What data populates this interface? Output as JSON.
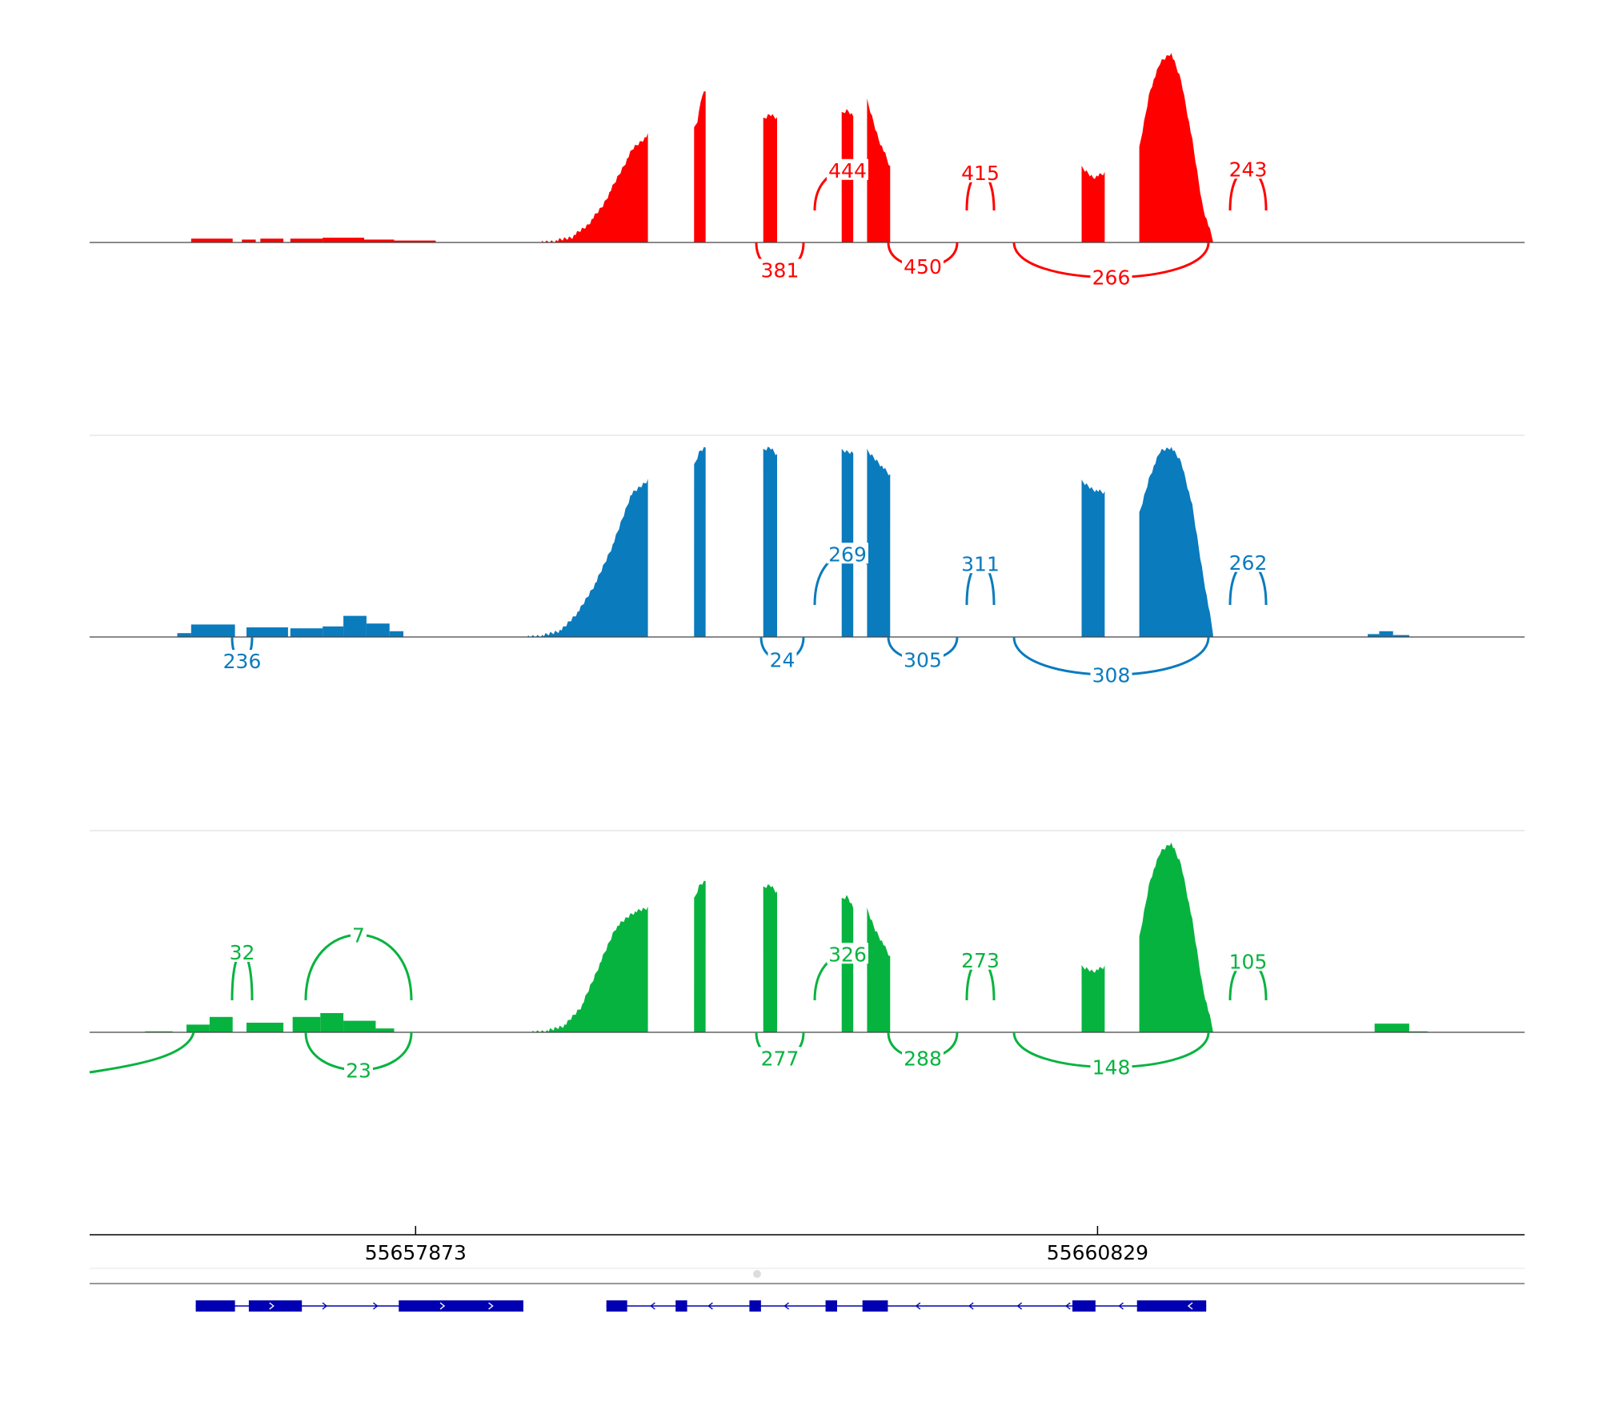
{
  "genome_axis": {
    "ticks": [
      {
        "position": 55657873,
        "label": "55657873"
      },
      {
        "position": 55660829,
        "label": "55660829"
      }
    ],
    "range": [
      55656460,
      55662680
    ]
  },
  "tracks": [
    {
      "id": "red",
      "color": "#ff0000",
      "coverage_blocks": [
        [
          55656900,
          55657080,
          0.02
        ],
        [
          55657120,
          55657180,
          0.015
        ],
        [
          55657200,
          55657300,
          0.02
        ],
        [
          55657330,
          55657470,
          0.02
        ],
        [
          55657470,
          55657650,
          0.025
        ],
        [
          55657650,
          55657780,
          0.015
        ],
        [
          55657780,
          55657960,
          0.01
        ]
      ],
      "exon_peaks": [
        {
          "start": 55658420,
          "end": 55658880,
          "profile": [
            0.01,
            0.02,
            0.04,
            0.1,
            0.2,
            0.35,
            0.5,
            0.57
          ]
        },
        {
          "start": 55659080,
          "end": 55659130,
          "profile": [
            0.6,
            0.65,
            0.78,
            0.8
          ]
        },
        {
          "start": 55659380,
          "end": 55659440,
          "profile": [
            0.65,
            0.68,
            0.66
          ]
        },
        {
          "start": 55659720,
          "end": 55659770,
          "profile": [
            0.68,
            0.7,
            0.67
          ]
        },
        {
          "start": 55659830,
          "end": 55659930,
          "profile": [
            0.75,
            0.65,
            0.55,
            0.48,
            0.4
          ]
        },
        {
          "start": 55660760,
          "end": 55660860,
          "profile": [
            0.4,
            0.35,
            0.37
          ]
        },
        {
          "start": 55661010,
          "end": 55661330,
          "profile": [
            0.5,
            0.8,
            0.95,
            1.0,
            0.85,
            0.55,
            0.2,
            0.02
          ]
        }
      ],
      "junctions": [
        {
          "value": "381",
          "side": "below"
        },
        {
          "value": "444",
          "side": "above"
        },
        {
          "value": "450",
          "side": "below"
        },
        {
          "value": "415",
          "side": "above"
        },
        {
          "value": "266",
          "side": "below"
        },
        {
          "value": "243",
          "side": "above"
        }
      ]
    },
    {
      "id": "blue",
      "color": "#0a7bbd",
      "coverage_blocks": [
        [
          55656840,
          55656900,
          0.02
        ],
        [
          55656900,
          55657090,
          0.065
        ],
        [
          55657140,
          55657320,
          0.05
        ],
        [
          55657330,
          55657470,
          0.045
        ],
        [
          55657470,
          55657560,
          0.055
        ],
        [
          55657560,
          55657660,
          0.11
        ],
        [
          55657660,
          55657760,
          0.07
        ],
        [
          55657760,
          55657820,
          0.03
        ],
        [
          55662000,
          55662050,
          0.015
        ],
        [
          55662050,
          55662110,
          0.03
        ],
        [
          55662110,
          55662180,
          0.01
        ]
      ],
      "exon_peaks": [
        {
          "start": 55658360,
          "end": 55658880,
          "profile": [
            0.01,
            0.02,
            0.05,
            0.15,
            0.3,
            0.5,
            0.75,
            0.83
          ]
        },
        {
          "start": 55659080,
          "end": 55659130,
          "profile": [
            0.9,
            0.98,
            1.0
          ]
        },
        {
          "start": 55659380,
          "end": 55659440,
          "profile": [
            0.98,
            1.0,
            0.96
          ]
        },
        {
          "start": 55659720,
          "end": 55659770,
          "profile": [
            0.98,
            0.97
          ]
        },
        {
          "start": 55659830,
          "end": 55659930,
          "profile": [
            0.98,
            0.92,
            0.85
          ]
        },
        {
          "start": 55660760,
          "end": 55660860,
          "profile": [
            0.82,
            0.78,
            0.76
          ]
        },
        {
          "start": 55661010,
          "end": 55661330,
          "profile": [
            0.65,
            0.85,
            0.98,
            1.0,
            0.92,
            0.7,
            0.35,
            0.03
          ]
        }
      ],
      "junctions": [
        {
          "value": "24",
          "side": "below"
        },
        {
          "value": "269",
          "side": "above"
        },
        {
          "value": "305",
          "side": "below"
        },
        {
          "value": "311",
          "side": "above"
        },
        {
          "value": "308",
          "side": "below"
        },
        {
          "value": "262",
          "side": "above"
        },
        {
          "value": "236",
          "side": "below"
        }
      ]
    },
    {
      "id": "green",
      "color": "#07b33f",
      "coverage_blocks": [
        [
          55656700,
          55656820,
          0.005
        ],
        [
          55656880,
          55656980,
          0.04
        ],
        [
          55656980,
          55657080,
          0.08
        ],
        [
          55657140,
          55657300,
          0.05
        ],
        [
          55657340,
          55657460,
          0.08
        ],
        [
          55657460,
          55657560,
          0.1
        ],
        [
          55657560,
          55657700,
          0.06
        ],
        [
          55657700,
          55657780,
          0.02
        ],
        [
          55662030,
          55662180,
          0.045
        ],
        [
          55662180,
          55662260,
          0.005
        ]
      ],
      "exon_peaks": [
        {
          "start": 55658380,
          "end": 55658880,
          "profile": [
            0.01,
            0.02,
            0.05,
            0.15,
            0.35,
            0.55,
            0.63,
            0.66
          ]
        },
        {
          "start": 55659080,
          "end": 55659130,
          "profile": [
            0.7,
            0.78,
            0.8
          ]
        },
        {
          "start": 55659380,
          "end": 55659440,
          "profile": [
            0.76,
            0.78,
            0.74
          ]
        },
        {
          "start": 55659720,
          "end": 55659770,
          "profile": [
            0.7,
            0.72,
            0.66
          ]
        },
        {
          "start": 55659830,
          "end": 55659930,
          "profile": [
            0.65,
            0.55,
            0.48,
            0.4
          ]
        },
        {
          "start": 55660760,
          "end": 55660860,
          "profile": [
            0.35,
            0.33,
            0.35
          ]
        },
        {
          "start": 55661010,
          "end": 55661330,
          "profile": [
            0.5,
            0.8,
            0.95,
            1.0,
            0.88,
            0.6,
            0.25,
            0.02
          ]
        }
      ],
      "junctions": [
        {
          "value": "32",
          "side": "above"
        },
        {
          "value": "7",
          "side": "above"
        },
        {
          "value": "23",
          "side": "below"
        },
        {
          "value": "277",
          "side": "below"
        },
        {
          "value": "326",
          "side": "above"
        },
        {
          "value": "288",
          "side": "below"
        },
        {
          "value": "273",
          "side": "above"
        },
        {
          "value": "148",
          "side": "below"
        },
        {
          "value": "105",
          "side": "above"
        }
      ]
    }
  ],
  "gene_models": [
    {
      "strand": "+",
      "exons": [
        [
          55656920,
          55657090
        ],
        [
          55657150,
          55657380
        ],
        [
          55657800,
          55658340
        ]
      ],
      "arrows": [
        55657250,
        55657480,
        55657700,
        55657990,
        55658200
      ]
    },
    {
      "strand": "-",
      "exons": [
        [
          55658700,
          55658790
        ],
        [
          55659000,
          55659050
        ],
        [
          55659320,
          55659370
        ],
        [
          55659650,
          55659700
        ],
        [
          55659810,
          55659920
        ],
        [
          55660720,
          55660820
        ],
        [
          55661000,
          55661300
        ]
      ],
      "arrows": [
        55658900,
        55659150,
        55659480,
        55660050,
        55660280,
        55660490,
        55660700,
        55660930,
        55661230
      ]
    }
  ],
  "colors": {
    "axis": "#000000",
    "separator": "#e6e6e6",
    "gene": "#0000b2"
  }
}
